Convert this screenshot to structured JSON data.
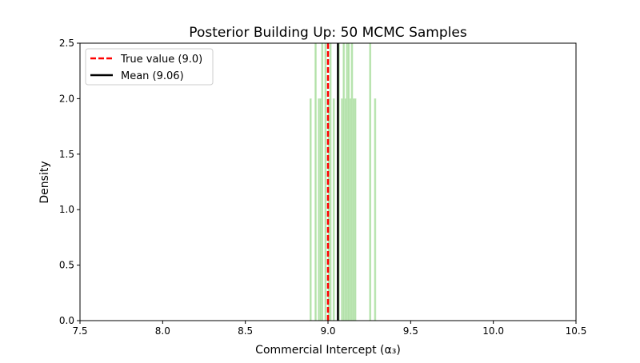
{
  "chart_data": {
    "type": "bar",
    "title": "Posterior Building Up: 50 MCMC Samples",
    "xlabel": "Commercial Intercept (α₃)",
    "ylabel": "Density",
    "xlim": [
      7.5,
      10.5
    ],
    "ylim": [
      0,
      2.5
    ],
    "xticks": [
      "7.5",
      "8.0",
      "8.5",
      "9.0",
      "9.5",
      "10.0",
      "10.5"
    ],
    "yticks": [
      "0.0",
      "0.5",
      "1.0",
      "1.5",
      "2.0",
      "2.5"
    ],
    "grid": false,
    "bin_width": 0.01,
    "bins": [
      {
        "left": 8.89,
        "density": 2
      },
      {
        "left": 8.92,
        "density": 4
      },
      {
        "left": 8.94,
        "density": 2
      },
      {
        "left": 8.95,
        "density": 2
      },
      {
        "left": 8.96,
        "density": 4
      },
      {
        "left": 8.98,
        "density": 4
      },
      {
        "left": 9.0,
        "density": 2
      },
      {
        "left": 9.01,
        "density": 4
      },
      {
        "left": 9.03,
        "density": 2
      },
      {
        "left": 9.06,
        "density": 4
      },
      {
        "left": 9.08,
        "density": 2
      },
      {
        "left": 9.09,
        "density": 4
      },
      {
        "left": 9.1,
        "density": 2
      },
      {
        "left": 9.11,
        "density": 4
      },
      {
        "left": 9.12,
        "density": 4
      },
      {
        "left": 9.13,
        "density": 2
      },
      {
        "left": 9.14,
        "density": 4
      },
      {
        "left": 9.15,
        "density": 2
      },
      {
        "left": 9.16,
        "density": 2
      },
      {
        "left": 9.25,
        "density": 4
      },
      {
        "left": 9.28,
        "density": 2
      }
    ],
    "bar_color": "#98d68c",
    "true_value": 9.0,
    "mean": 9.06,
    "true_color": "#ff0000",
    "mean_color": "#000000",
    "legend": {
      "placement": "top-left",
      "entries": [
        {
          "label": "True value (9.0)",
          "style": "dashed",
          "color": "#ff0000"
        },
        {
          "label": "Mean (9.06)",
          "style": "solid",
          "color": "#000000"
        }
      ]
    }
  }
}
